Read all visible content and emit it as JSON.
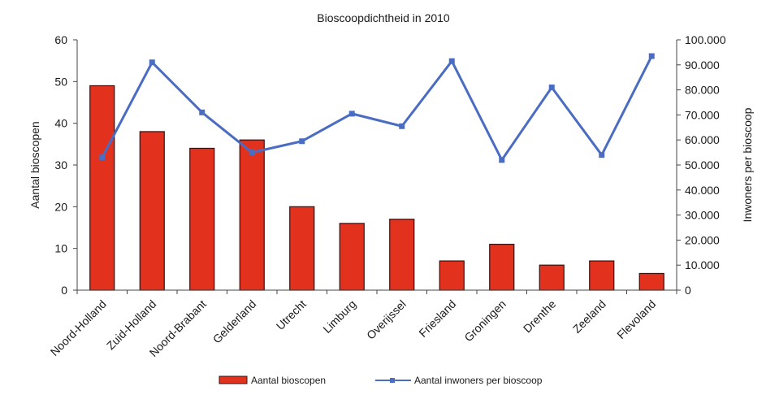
{
  "chart_data": {
    "type": "bar",
    "title": "Bioscoopdichtheid in 2010",
    "categories": [
      "Noord-Holland",
      "Zuid-Holland",
      "Noord-Brabant",
      "Gelderland",
      "Utrecht",
      "Limburg",
      "Overijssel",
      "Friesland",
      "Groningen",
      "Drenthe",
      "Zeeland",
      "Flevoland"
    ],
    "series": [
      {
        "name": "Aantal bioscopen",
        "type": "bar",
        "axis": "left",
        "color": "#e2311d",
        "values": [
          49,
          38,
          34,
          36,
          20,
          16,
          17,
          7,
          11,
          6,
          7,
          4
        ]
      },
      {
        "name": "Aantal inwoners per bioscoop",
        "type": "line",
        "axis": "right",
        "color": "#4a6cc2",
        "values": [
          53000,
          91000,
          71000,
          55000,
          59500,
          70500,
          65500,
          91500,
          52000,
          81000,
          54000,
          93500
        ]
      }
    ],
    "ylabel": "Aantal bioscopen",
    "ylim": [
      0,
      60
    ],
    "yticks": [
      "0",
      "10",
      "20",
      "30",
      "40",
      "50",
      "60"
    ],
    "y2label": "Inwoners per bioscoop",
    "y2lim": [
      0,
      100000
    ],
    "y2ticks": [
      "0",
      "10.000",
      "20.000",
      "30.000",
      "40.000",
      "50.000",
      "60.000",
      "70.000",
      "80.000",
      "90.000",
      "100.000"
    ],
    "grid": false,
    "legend_position": "bottom"
  }
}
